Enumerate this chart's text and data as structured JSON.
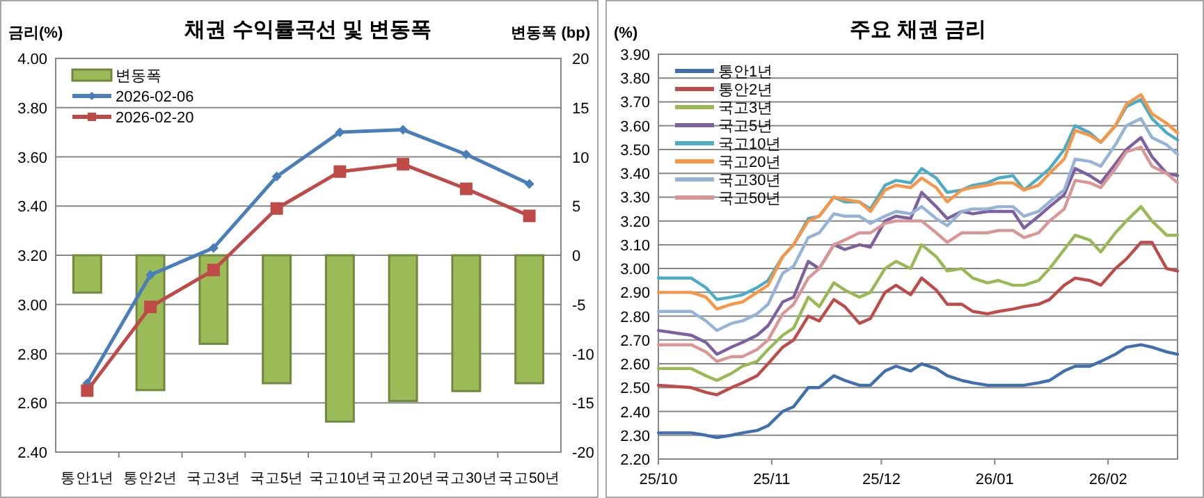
{
  "chart_data": [
    {
      "type": "bar",
      "title": "채권 수익률곡선 및 변동폭",
      "ylabel": "금리(%)",
      "y2label": "변동폭 (bp)",
      "categories": [
        "통안1년",
        "통안2년",
        "국고3년",
        "국고5년",
        "국고10년",
        "국고20년",
        "국고30년",
        "국고50년"
      ],
      "series": [
        {
          "name": "변동폭",
          "axis": "y2",
          "color": "#9bbb59",
          "values": [
            -3.8,
            -13.7,
            -9.0,
            -13.0,
            -16.9,
            -14.8,
            -13.8,
            -13.0
          ]
        },
        {
          "name": "2026-02-06",
          "type": "line",
          "marker": "diamond",
          "color": "#4a7ebb",
          "values": [
            2.68,
            3.12,
            3.23,
            3.52,
            3.7,
            3.71,
            3.61,
            3.49
          ]
        },
        {
          "name": "2026-02-20",
          "type": "line",
          "marker": "square",
          "color": "#be4b48",
          "values": [
            2.65,
            2.99,
            3.14,
            3.39,
            3.54,
            3.57,
            3.47,
            3.36
          ]
        }
      ],
      "ylim": [
        2.4,
        4.0
      ],
      "yticks": [
        {
          "value": 2.4,
          "label": "2.40"
        },
        {
          "value": 2.6,
          "label": "2.60"
        },
        {
          "value": 2.8,
          "label": "2.80"
        },
        {
          "value": 3.0,
          "label": "3.00"
        },
        {
          "value": 3.2,
          "label": "3.20"
        },
        {
          "value": 3.4,
          "label": "3.40"
        },
        {
          "value": 3.6,
          "label": "3.60"
        },
        {
          "value": 3.8,
          "label": "3.80"
        },
        {
          "value": 4.0,
          "label": "4.00"
        }
      ],
      "y2lim": [
        -20,
        20
      ],
      "y2ticks": [
        -20,
        -15,
        -10,
        -5,
        0,
        5,
        10,
        15,
        20
      ],
      "grid": "y",
      "legend": "top left"
    },
    {
      "type": "line",
      "title": "주요 채권 금리",
      "ylabel": "(%)",
      "x": [
        "2025-10-01",
        "2025-10-10",
        "2025-10-14",
        "2025-10-17",
        "2025-10-21",
        "2025-10-24",
        "2025-10-28",
        "2025-10-31",
        "2025-11-04",
        "2025-11-07",
        "2025-11-11",
        "2025-11-14",
        "2025-11-18",
        "2025-11-21",
        "2025-11-25",
        "2025-11-28",
        "2025-12-02",
        "2025-12-05",
        "2025-12-09",
        "2025-12-12",
        "2025-12-16",
        "2025-12-19",
        "2025-12-23",
        "2025-12-26",
        "2025-12-30",
        "2026-01-02",
        "2026-01-06",
        "2026-01-09",
        "2026-01-13",
        "2026-01-16",
        "2026-01-20",
        "2026-01-23",
        "2026-01-27",
        "2026-01-30",
        "2026-02-03",
        "2026-02-06",
        "2026-02-10",
        "2026-02-13",
        "2026-02-17",
        "2026-02-20"
      ],
      "series": [
        {
          "name": "통안1년",
          "color": "#3f6fae",
          "values": [
            2.31,
            2.31,
            2.3,
            2.29,
            2.3,
            2.31,
            2.32,
            2.34,
            2.4,
            2.42,
            2.5,
            2.5,
            2.55,
            2.53,
            2.51,
            2.51,
            2.57,
            2.59,
            2.57,
            2.6,
            2.58,
            2.55,
            2.53,
            2.52,
            2.51,
            2.51,
            2.51,
            2.51,
            2.52,
            2.53,
            2.57,
            2.59,
            2.59,
            2.61,
            2.64,
            2.67,
            2.68,
            2.67,
            2.65,
            2.64
          ]
        },
        {
          "name": "통안2년",
          "color": "#be4b48",
          "values": [
            2.51,
            2.5,
            2.48,
            2.47,
            2.5,
            2.52,
            2.55,
            2.6,
            2.67,
            2.7,
            2.8,
            2.78,
            2.87,
            2.84,
            2.77,
            2.79,
            2.9,
            2.93,
            2.89,
            2.96,
            2.91,
            2.85,
            2.85,
            2.82,
            2.81,
            2.82,
            2.83,
            2.84,
            2.85,
            2.87,
            2.93,
            2.96,
            2.95,
            2.93,
            3.0,
            3.04,
            3.11,
            3.11,
            3.0,
            2.99
          ]
        },
        {
          "name": "국고3년",
          "color": "#98b954",
          "values": [
            2.58,
            2.58,
            2.55,
            2.53,
            2.56,
            2.59,
            2.61,
            2.66,
            2.72,
            2.75,
            2.88,
            2.84,
            2.94,
            2.91,
            2.88,
            2.9,
            3.0,
            3.03,
            3.0,
            3.1,
            3.05,
            2.99,
            3.0,
            2.96,
            2.94,
            2.95,
            2.93,
            2.93,
            2.95,
            3.0,
            3.08,
            3.14,
            3.12,
            3.07,
            3.15,
            3.2,
            3.26,
            3.2,
            3.14,
            3.14
          ]
        },
        {
          "name": "국고5년",
          "color": "#7d60a0",
          "values": [
            2.74,
            2.72,
            2.69,
            2.64,
            2.67,
            2.69,
            2.72,
            2.76,
            2.86,
            2.88,
            3.03,
            3.0,
            3.1,
            3.08,
            3.1,
            3.09,
            3.2,
            3.22,
            3.21,
            3.32,
            3.26,
            3.21,
            3.24,
            3.23,
            3.24,
            3.24,
            3.24,
            3.17,
            3.22,
            3.26,
            3.31,
            3.42,
            3.39,
            3.36,
            3.44,
            3.5,
            3.55,
            3.47,
            3.4,
            3.39
          ]
        },
        {
          "name": "국고10년",
          "color": "#4bacc6",
          "values": [
            2.96,
            2.96,
            2.92,
            2.87,
            2.88,
            2.89,
            2.92,
            2.95,
            3.05,
            3.1,
            3.21,
            3.22,
            3.3,
            3.28,
            3.28,
            3.25,
            3.35,
            3.37,
            3.36,
            3.42,
            3.38,
            3.32,
            3.33,
            3.35,
            3.36,
            3.38,
            3.39,
            3.33,
            3.38,
            3.42,
            3.5,
            3.6,
            3.57,
            3.53,
            3.6,
            3.68,
            3.71,
            3.63,
            3.57,
            3.54
          ]
        },
        {
          "name": "국고20년",
          "color": "#f79646",
          "values": [
            2.9,
            2.9,
            2.88,
            2.83,
            2.85,
            2.86,
            2.9,
            2.93,
            3.05,
            3.1,
            3.2,
            3.22,
            3.3,
            3.29,
            3.28,
            3.24,
            3.33,
            3.35,
            3.34,
            3.38,
            3.34,
            3.28,
            3.33,
            3.34,
            3.35,
            3.36,
            3.36,
            3.33,
            3.35,
            3.4,
            3.46,
            3.58,
            3.56,
            3.53,
            3.6,
            3.69,
            3.73,
            3.65,
            3.61,
            3.57
          ]
        },
        {
          "name": "국고30년",
          "color": "#95b3d7",
          "values": [
            2.82,
            2.82,
            2.78,
            2.74,
            2.77,
            2.78,
            2.81,
            2.85,
            2.98,
            3.01,
            3.13,
            3.15,
            3.23,
            3.22,
            3.22,
            3.19,
            3.22,
            3.24,
            3.23,
            3.26,
            3.21,
            3.18,
            3.24,
            3.25,
            3.25,
            3.26,
            3.26,
            3.22,
            3.24,
            3.28,
            3.33,
            3.46,
            3.45,
            3.43,
            3.52,
            3.6,
            3.63,
            3.55,
            3.52,
            3.48
          ]
        },
        {
          "name": "국고50년",
          "color": "#d99694",
          "values": [
            2.68,
            2.68,
            2.65,
            2.61,
            2.63,
            2.63,
            2.66,
            2.7,
            2.81,
            2.85,
            2.96,
            3.0,
            3.1,
            3.12,
            3.15,
            3.15,
            3.19,
            3.2,
            3.2,
            3.2,
            3.15,
            3.11,
            3.15,
            3.15,
            3.15,
            3.16,
            3.16,
            3.13,
            3.15,
            3.2,
            3.25,
            3.37,
            3.36,
            3.34,
            3.42,
            3.49,
            3.51,
            3.43,
            3.4,
            3.36
          ]
        }
      ],
      "xlim": [
        "2025-10-01",
        "2026-02-20"
      ],
      "xticks": [
        {
          "value": "2025-10-01",
          "label": "25/10"
        },
        {
          "value": "2025-11-01",
          "label": "25/11"
        },
        {
          "value": "2025-12-01",
          "label": "25/12"
        },
        {
          "value": "2026-01-01",
          "label": "26/01"
        },
        {
          "value": "2026-02-01",
          "label": "26/02"
        }
      ],
      "ylim": [
        2.2,
        3.9
      ],
      "yticks": [
        {
          "value": 2.2,
          "label": "2.20"
        },
        {
          "value": 2.3,
          "label": "2.30"
        },
        {
          "value": 2.4,
          "label": "2.40"
        },
        {
          "value": 2.5,
          "label": "2.50"
        },
        {
          "value": 2.6,
          "label": "2.60"
        },
        {
          "value": 2.7,
          "label": "2.70"
        },
        {
          "value": 2.8,
          "label": "2.80"
        },
        {
          "value": 2.9,
          "label": "2.90"
        },
        {
          "value": 3.0,
          "label": "3.00"
        },
        {
          "value": 3.1,
          "label": "3.10"
        },
        {
          "value": 3.2,
          "label": "3.20"
        },
        {
          "value": 3.3,
          "label": "3.30"
        },
        {
          "value": 3.4,
          "label": "3.40"
        },
        {
          "value": 3.5,
          "label": "3.50"
        },
        {
          "value": 3.6,
          "label": "3.60"
        },
        {
          "value": 3.7,
          "label": "3.70"
        },
        {
          "value": 3.8,
          "label": "3.80"
        },
        {
          "value": 3.9,
          "label": "3.90"
        }
      ],
      "grid": "y",
      "legend": "top left"
    }
  ]
}
